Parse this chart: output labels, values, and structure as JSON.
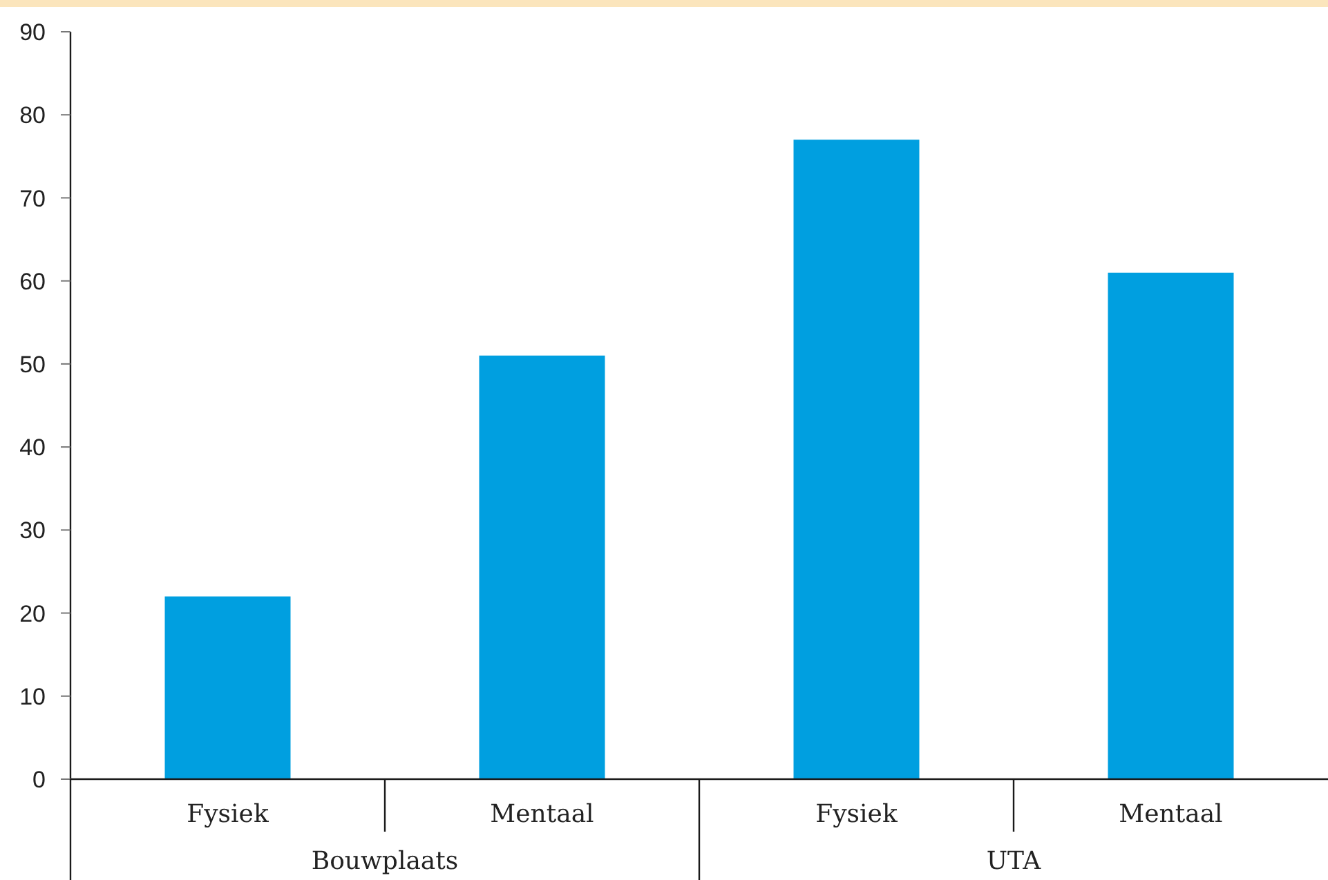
{
  "chart_data": {
    "type": "bar",
    "categories": [
      "Fysiek",
      "Mentaal",
      "Fysiek",
      "Mentaal"
    ],
    "values": [
      22,
      51,
      77,
      61
    ],
    "color": "#009fe0",
    "ylim": [
      0,
      90
    ],
    "yticks": [
      0,
      10,
      20,
      30,
      40,
      50,
      60,
      70,
      80,
      90
    ],
    "annotations": [
      "Bouwplaats",
      "UTA"
    ]
  }
}
